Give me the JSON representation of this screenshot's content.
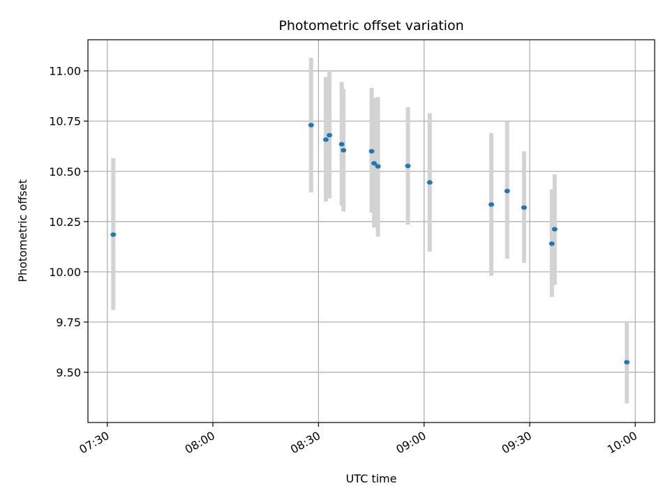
{
  "chart_data": {
    "type": "scatter",
    "title": "Photometric offset variation",
    "xlabel": "UTC time",
    "ylabel": "Photometric offset",
    "x_ticks": [
      "07:30",
      "08:00",
      "08:30",
      "09:00",
      "09:30",
      "10:00"
    ],
    "x_tick_minutes": [
      450,
      480,
      510,
      540,
      570,
      600
    ],
    "xlim_minutes": [
      444.5,
      605.5
    ],
    "y_ticks": [
      9.5,
      9.75,
      10.0,
      10.25,
      10.5,
      10.75,
      11.0
    ],
    "y_tick_labels": [
      "9.50",
      "9.75",
      "10.00",
      "10.25",
      "10.50",
      "10.75",
      "11.00"
    ],
    "ylim": [
      9.25,
      11.155
    ],
    "grid": true,
    "colors": {
      "point": "#1f77b4",
      "errorbar": "#d3d3d3",
      "grid": "#b0b0b0"
    },
    "points": [
      {
        "t": "07:31.7",
        "y": 10.185,
        "lo": 9.81,
        "hi": 10.565
      },
      {
        "t": "08:27.9",
        "y": 10.73,
        "lo": 10.395,
        "hi": 11.065
      },
      {
        "t": "08:32.1",
        "y": 10.658,
        "lo": 10.35,
        "hi": 10.97
      },
      {
        "t": "08:33.1",
        "y": 10.68,
        "lo": 10.365,
        "hi": 10.995
      },
      {
        "t": "08:36.6",
        "y": 10.635,
        "lo": 10.33,
        "hi": 10.945
      },
      {
        "t": "08:37.1",
        "y": 10.605,
        "lo": 10.3,
        "hi": 10.91
      },
      {
        "t": "08:45.1",
        "y": 10.6,
        "lo": 10.295,
        "hi": 10.915
      },
      {
        "t": "08:45.8",
        "y": 10.54,
        "lo": 10.22,
        "hi": 10.865
      },
      {
        "t": "08:46.9",
        "y": 10.525,
        "lo": 10.175,
        "hi": 10.87
      },
      {
        "t": "08:55.4",
        "y": 10.527,
        "lo": 10.235,
        "hi": 10.82
      },
      {
        "t": "09:01.6",
        "y": 10.445,
        "lo": 10.1,
        "hi": 10.79
      },
      {
        "t": "09:19.1",
        "y": 10.335,
        "lo": 9.98,
        "hi": 10.69
      },
      {
        "t": "09:23.6",
        "y": 10.402,
        "lo": 10.065,
        "hi": 10.75
      },
      {
        "t": "09:28.4",
        "y": 10.32,
        "lo": 10.045,
        "hi": 10.6
      },
      {
        "t": "09:36.3",
        "y": 10.14,
        "lo": 9.875,
        "hi": 10.41
      },
      {
        "t": "09:37.1",
        "y": 10.212,
        "lo": 9.935,
        "hi": 10.485
      },
      {
        "t": "09:57.6",
        "y": 9.55,
        "lo": 9.345,
        "hi": 9.755
      }
    ]
  }
}
